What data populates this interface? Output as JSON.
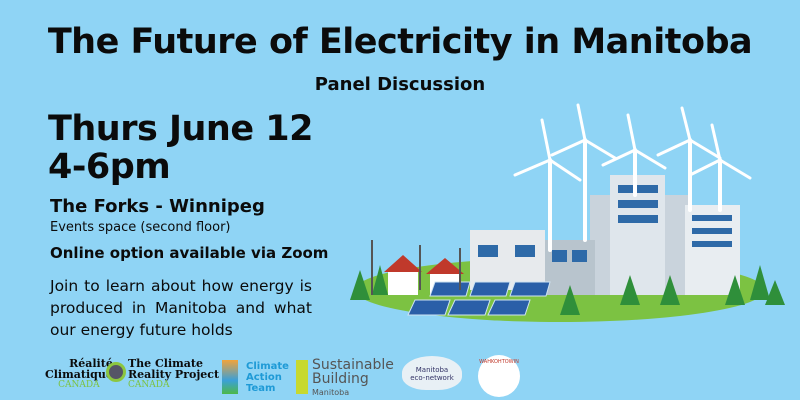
{
  "title": "The Future of Electricity in Manitoba",
  "subtitle": "Panel Discussion",
  "date": "Thurs June 12",
  "time": "4-6pm",
  "venue": "The Forks - Winnipeg",
  "room": "Events space (second floor)",
  "online": "Online option available via Zoom",
  "description": "Join to learn about how energy is produced in Manitoba and what our energy future holds",
  "colors": {
    "background": "#8fd4f5",
    "text": "#0b0b0b",
    "grass": "#7cc242"
  },
  "logos": {
    "realite": {
      "line1": "Réalité",
      "line2": "Climatique",
      "line3": "CANADA"
    },
    "climate_reality": {
      "line1": "The Climate",
      "line2": "Reality Project",
      "line3": "CANADA"
    },
    "cat": {
      "line1": "Climate",
      "line2": "Action",
      "line3": "Team"
    },
    "sbm": {
      "line1": "Sustainable",
      "line2": "Building",
      "line3": "Manitoba"
    },
    "eco": {
      "line1": "Manitoba",
      "line2": "eco-network"
    },
    "wahkohtowin": {
      "text": "WAHKOHTOWIN"
    }
  }
}
